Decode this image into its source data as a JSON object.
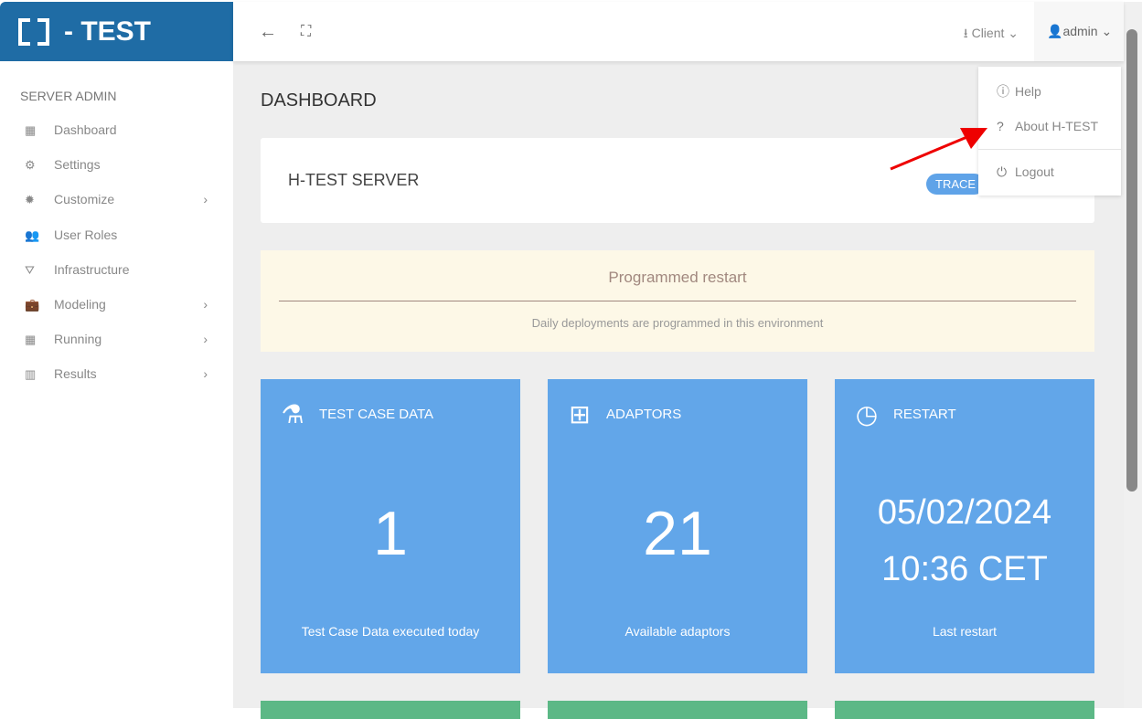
{
  "brand": {
    "text": "- TEST"
  },
  "topbar": {
    "client": "Client",
    "user": "admin"
  },
  "sidebar": {
    "heading": "SERVER ADMIN",
    "items": [
      {
        "label": "Dashboard",
        "icon": "th-large-icon",
        "glyph": "▦",
        "sub": false
      },
      {
        "label": "Settings",
        "icon": "gear-icon",
        "glyph": "⚙",
        "sub": false
      },
      {
        "label": "Customize",
        "icon": "certificate-icon",
        "glyph": "✹",
        "sub": true
      },
      {
        "label": "User Roles",
        "icon": "users-icon",
        "glyph": "👥",
        "sub": false
      },
      {
        "label": "Infrastructure",
        "icon": "road-icon",
        "glyph": "⛛",
        "sub": false
      },
      {
        "label": "Modeling",
        "icon": "briefcase-icon",
        "glyph": "💼",
        "sub": true
      },
      {
        "label": "Running",
        "icon": "calendar-icon",
        "glyph": "▦",
        "sub": true
      },
      {
        "label": "Results",
        "icon": "bar-chart-icon",
        "glyph": "▥",
        "sub": true
      }
    ]
  },
  "main": {
    "title": "DASHBOARD",
    "server": "H-TEST SERVER",
    "badge": "TRACE",
    "notice": {
      "title": "Programmed restart",
      "text": "Daily deployments are programmed in this environment"
    },
    "cards": [
      {
        "title": "TEST CASE DATA",
        "value": "1",
        "footer": "Test Case Data executed today"
      },
      {
        "title": "ADAPTORS",
        "value": "21",
        "footer": "Available adaptors"
      },
      {
        "title": "RESTART",
        "date": "05/02/2024",
        "time": "10:36 CET",
        "footer": "Last restart"
      }
    ]
  },
  "dropdown": {
    "items": [
      "Help",
      "About H-TEST",
      "Logout"
    ]
  },
  "colors": {
    "brand": "#1f6ca5",
    "card": "#62a6e9",
    "badge": "#5fa3e8",
    "green": "#5cb886"
  }
}
